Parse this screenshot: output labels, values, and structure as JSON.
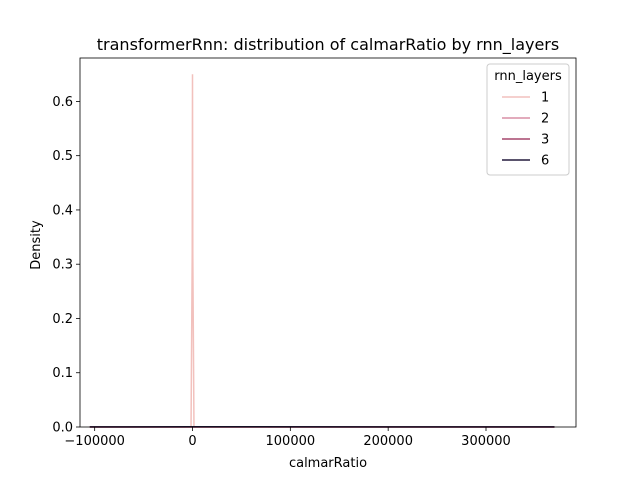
{
  "chart_data": {
    "type": "line",
    "title": "transformerRnn: distribution of calmarRatio by rnn_layers",
    "xlabel": "calmarRatio",
    "ylabel": "Density",
    "xlim": [
      -115000,
      392000
    ],
    "ylim": [
      0.0,
      0.68
    ],
    "x_ticks": [
      {
        "value": -100000,
        "label": "−100000"
      },
      {
        "value": 0,
        "label": "0"
      },
      {
        "value": 100000,
        "label": "100000"
      },
      {
        "value": 200000,
        "label": "200000"
      },
      {
        "value": 300000,
        "label": "300000"
      }
    ],
    "y_ticks": [
      {
        "value": 0.0,
        "label": "0.0"
      },
      {
        "value": 0.1,
        "label": "0.1"
      },
      {
        "value": 0.2,
        "label": "0.2"
      },
      {
        "value": 0.3,
        "label": "0.3"
      },
      {
        "value": 0.4,
        "label": "0.4"
      },
      {
        "value": 0.5,
        "label": "0.5"
      },
      {
        "value": 0.6,
        "label": "0.6"
      }
    ],
    "grid": false,
    "legend": {
      "title": "rnn_layers",
      "placement": "top-right"
    },
    "series": [
      {
        "name": "1",
        "color": "#f2c1bd",
        "points": [
          [
            -105000,
            0
          ],
          [
            -1500,
            0
          ],
          [
            -300,
            0.32
          ],
          [
            0,
            0.65
          ],
          [
            300,
            0.32
          ],
          [
            1500,
            0
          ],
          [
            370000,
            0
          ]
        ]
      },
      {
        "name": "2",
        "color": "#d98fa5",
        "points": [
          [
            -105000,
            0
          ],
          [
            370000,
            0
          ]
        ]
      },
      {
        "name": "3",
        "color": "#a5476d",
        "points": [
          [
            -105000,
            0
          ],
          [
            370000,
            0
          ]
        ]
      },
      {
        "name": "6",
        "color": "#231a3d",
        "points": [
          [
            -105000,
            0.0002
          ],
          [
            0,
            0.0004
          ],
          [
            200000,
            0.0003
          ],
          [
            370000,
            0.0002
          ]
        ]
      }
    ]
  }
}
